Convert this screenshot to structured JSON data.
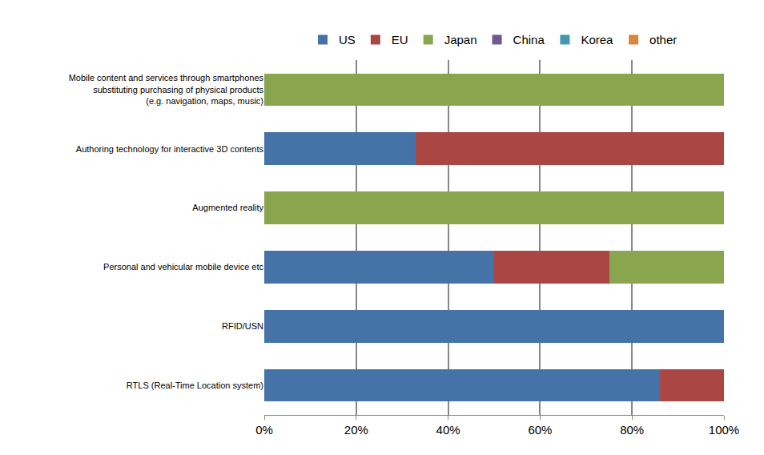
{
  "chart_data": {
    "type": "bar",
    "orientation": "horizontal",
    "stacked": true,
    "categories": [
      "Mobile content and services through smartphones substituting purchasing of physical products (e.g. navigation, maps, music)",
      "Authoring technology for interactive 3D contents",
      "Augmented reality",
      "Personal and vehicular mobile device etc",
      "RFID/USN",
      "RTLS (Real-Time Location system)"
    ],
    "series": [
      {
        "name": "US",
        "color": "#4572A7",
        "values": [
          0,
          33,
          0,
          50,
          100,
          86
        ]
      },
      {
        "name": "EU",
        "color": "#AA4643",
        "values": [
          0,
          67,
          0,
          25,
          0,
          14
        ]
      },
      {
        "name": "Japan",
        "color": "#89A54E",
        "values": [
          100,
          0,
          100,
          25,
          0,
          0
        ]
      },
      {
        "name": "China",
        "color": "#71588F",
        "values": [
          0,
          0,
          0,
          0,
          0,
          0
        ]
      },
      {
        "name": "Korea",
        "color": "#4198AF",
        "values": [
          0,
          0,
          0,
          0,
          0,
          0
        ]
      },
      {
        "name": "other",
        "color": "#DB843D",
        "values": [
          0,
          0,
          0,
          0,
          0,
          0
        ]
      }
    ],
    "xlim": [
      0,
      100
    ],
    "xticks": [
      {
        "value": 0,
        "label": "0%"
      },
      {
        "value": 20,
        "label": "20%"
      },
      {
        "value": 40,
        "label": "40%"
      },
      {
        "value": 60,
        "label": "60%"
      },
      {
        "value": 80,
        "label": "80%"
      },
      {
        "value": 100,
        "label": "100%"
      }
    ],
    "grid": true,
    "legend": "top"
  }
}
